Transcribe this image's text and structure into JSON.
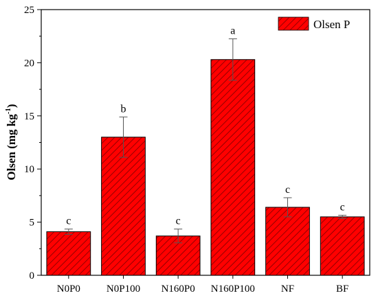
{
  "chart_data": {
    "type": "bar",
    "title": "",
    "xlabel": "",
    "ylabel": "Olsen (mg kg",
    "ylabel_superscript": "-1",
    "ylabel_close": ")",
    "categories": [
      "N0P0",
      "N0P100",
      "N160P0",
      "N160P100",
      "NF",
      "BF"
    ],
    "series": [
      {
        "name": "Olsen P",
        "values": [
          4.1,
          13.0,
          3.7,
          20.3,
          6.4,
          5.5
        ],
        "errors": [
          0.25,
          1.9,
          0.65,
          1.95,
          0.9,
          0.15
        ],
        "significance": [
          "c",
          "b",
          "c",
          "a",
          "c",
          "c"
        ],
        "color": "#ff0000",
        "hatch_color": "#7a0000"
      }
    ],
    "ylim": [
      0,
      25
    ],
    "yticks": [
      0,
      5,
      10,
      15,
      20,
      25
    ],
    "grid": false,
    "legend_position": "top-right"
  }
}
